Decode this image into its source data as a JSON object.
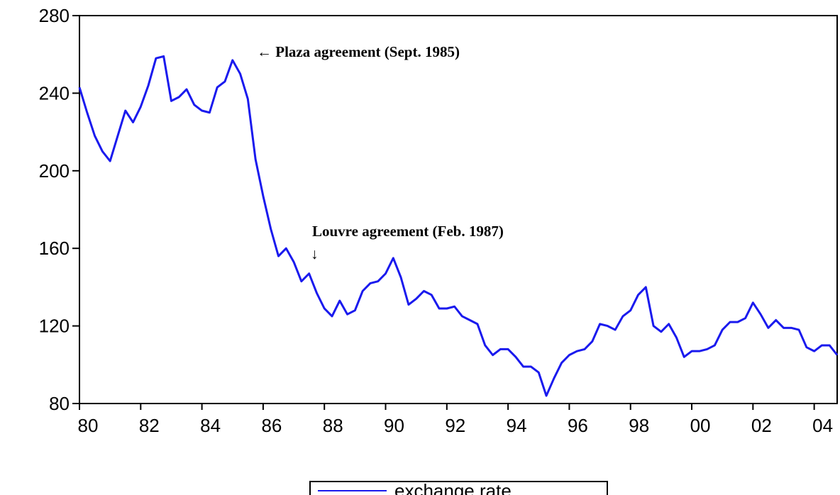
{
  "chart_data": {
    "type": "line",
    "x": [
      1980,
      1980.25,
      1980.5,
      1980.75,
      1981,
      1981.25,
      1981.5,
      1981.75,
      1982,
      1982.25,
      1982.5,
      1982.75,
      1983,
      1983.25,
      1983.5,
      1983.75,
      1984,
      1984.25,
      1984.5,
      1984.75,
      1985,
      1985.25,
      1985.5,
      1985.75,
      1986,
      1986.25,
      1986.5,
      1986.75,
      1987,
      1987.25,
      1987.5,
      1987.75,
      1988,
      1988.25,
      1988.5,
      1988.75,
      1989,
      1989.25,
      1989.5,
      1989.75,
      1990,
      1990.25,
      1990.5,
      1990.75,
      1991,
      1991.25,
      1991.5,
      1991.75,
      1992,
      1992.25,
      1992.5,
      1992.75,
      1993,
      1993.25,
      1993.5,
      1993.75,
      1994,
      1994.25,
      1994.5,
      1994.75,
      1995,
      1995.25,
      1995.5,
      1995.75,
      1996,
      1996.25,
      1996.5,
      1996.75,
      1997,
      1997.25,
      1997.5,
      1997.75,
      1998,
      1998.25,
      1998.5,
      1998.75,
      1999,
      1999.25,
      1999.5,
      1999.75,
      2000,
      2000.25,
      2000.5,
      2000.75,
      2001,
      2001.25,
      2001.5,
      2001.75,
      2002,
      2002.25,
      2002.5,
      2002.75,
      2003,
      2003.25,
      2003.5,
      2003.75,
      2004,
      2004.25,
      2004.5,
      2004.75
    ],
    "series": [
      {
        "name": "exchange rate",
        "color": "#1a1aee",
        "values": [
          243,
          230,
          218,
          210,
          205,
          218,
          231,
          225,
          233,
          244,
          258,
          259,
          236,
          238,
          242,
          234,
          231,
          230,
          243,
          246,
          257,
          250,
          237,
          206,
          187,
          170,
          156,
          160,
          153,
          143,
          147,
          137,
          129,
          125,
          133,
          126,
          128,
          138,
          142,
          143,
          147,
          155,
          145,
          131,
          134,
          138,
          136,
          129,
          129,
          130,
          125,
          123,
          121,
          110,
          105,
          108,
          108,
          104,
          99,
          99,
          96,
          84,
          93,
          101,
          105,
          107,
          108,
          112,
          121,
          120,
          118,
          125,
          128,
          136,
          140,
          120,
          117,
          121,
          114,
          104,
          107,
          107,
          108,
          110,
          118,
          122,
          122,
          124,
          132,
          126,
          119,
          123,
          119,
          119,
          118,
          109,
          107,
          110,
          110,
          105
        ]
      }
    ],
    "xlim": [
      1980,
      2004.75
    ],
    "xticks": [
      {
        "value": 1980,
        "label": "80"
      },
      {
        "value": 1982,
        "label": "82"
      },
      {
        "value": 1984,
        "label": "84"
      },
      {
        "value": 1986,
        "label": "86"
      },
      {
        "value": 1988,
        "label": "88"
      },
      {
        "value": 1990,
        "label": "90"
      },
      {
        "value": 1992,
        "label": "92"
      },
      {
        "value": 1994,
        "label": "94"
      },
      {
        "value": 1996,
        "label": "96"
      },
      {
        "value": 1998,
        "label": "98"
      },
      {
        "value": 2000,
        "label": "00"
      },
      {
        "value": 2002,
        "label": "02"
      },
      {
        "value": 2004,
        "label": "04"
      }
    ],
    "ylim": [
      80,
      280
    ],
    "yticks": [
      80,
      120,
      160,
      200,
      240,
      280
    ],
    "annotations": [
      "← Plaza agreement (Sept. 1985)",
      "Louvre agreement (Feb. 1987)",
      "↓"
    ]
  }
}
